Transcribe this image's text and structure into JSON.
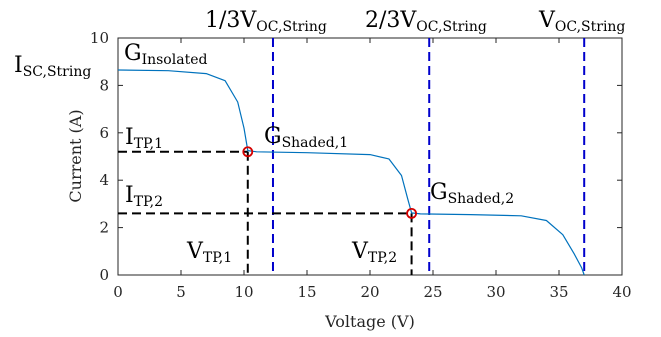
{
  "chart_data": {
    "type": "line",
    "xlabel": "Voltage (V)",
    "ylabel": "Current (A)",
    "xlim": [
      0,
      40
    ],
    "ylim": [
      0,
      10
    ],
    "x_ticks": [
      "0",
      "5",
      "10",
      "15",
      "20",
      "25",
      "30",
      "35",
      "40"
    ],
    "y_ticks": [
      "0",
      "2",
      "4",
      "6",
      "8",
      "10"
    ],
    "grid": false,
    "series": [
      {
        "color": "#0072bd",
        "x": [
          0,
          4,
          7,
          8.5,
          9.5,
          10.0,
          10.3,
          11,
          15,
          20,
          21.5,
          22.5,
          23.0,
          23.3,
          24,
          28,
          32,
          34,
          35.3,
          36.2,
          36.8,
          37.0
        ],
        "y": [
          8.65,
          8.62,
          8.5,
          8.2,
          7.3,
          6.2,
          5.25,
          5.2,
          5.16,
          5.08,
          4.9,
          4.2,
          3.2,
          2.62,
          2.58,
          2.55,
          2.5,
          2.3,
          1.7,
          0.9,
          0.3,
          0.0
        ]
      }
    ],
    "markers": [
      {
        "x": 10.3,
        "y": 5.2,
        "color": "#d40000"
      },
      {
        "x": 23.3,
        "y": 2.6,
        "color": "#d40000"
      }
    ],
    "vertical_lines": [
      {
        "x": 12.3,
        "label_base": "1/3V",
        "label_sub": "OC,String",
        "color": "#0000cc"
      },
      {
        "x": 24.7,
        "label_base": "2/3V",
        "label_sub": "OC,String",
        "color": "#0000cc"
      },
      {
        "x": 37.0,
        "label_base": "V",
        "label_sub": "OC,String",
        "color": "#0000cc"
      }
    ],
    "guide_lines": [
      {
        "x": 10.3,
        "y": 5.2
      },
      {
        "x": 23.3,
        "y": 2.6
      }
    ],
    "annotations": {
      "isc": {
        "base": "I",
        "sub": "SC,String"
      },
      "g_insolated": {
        "base": "G",
        "sub": "Insolated"
      },
      "g_shaded_1": {
        "base": "G",
        "sub": "Shaded,1"
      },
      "g_shaded_2": {
        "base": "G",
        "sub": "Shaded,2"
      },
      "i_tp_1": {
        "base": "I",
        "sub": "TP,1"
      },
      "i_tp_2": {
        "base": "I",
        "sub": "TP,2"
      },
      "v_tp_1": {
        "base": "V",
        "sub": "TP,1"
      },
      "v_tp_2": {
        "base": "V",
        "sub": "TP,2"
      }
    }
  }
}
